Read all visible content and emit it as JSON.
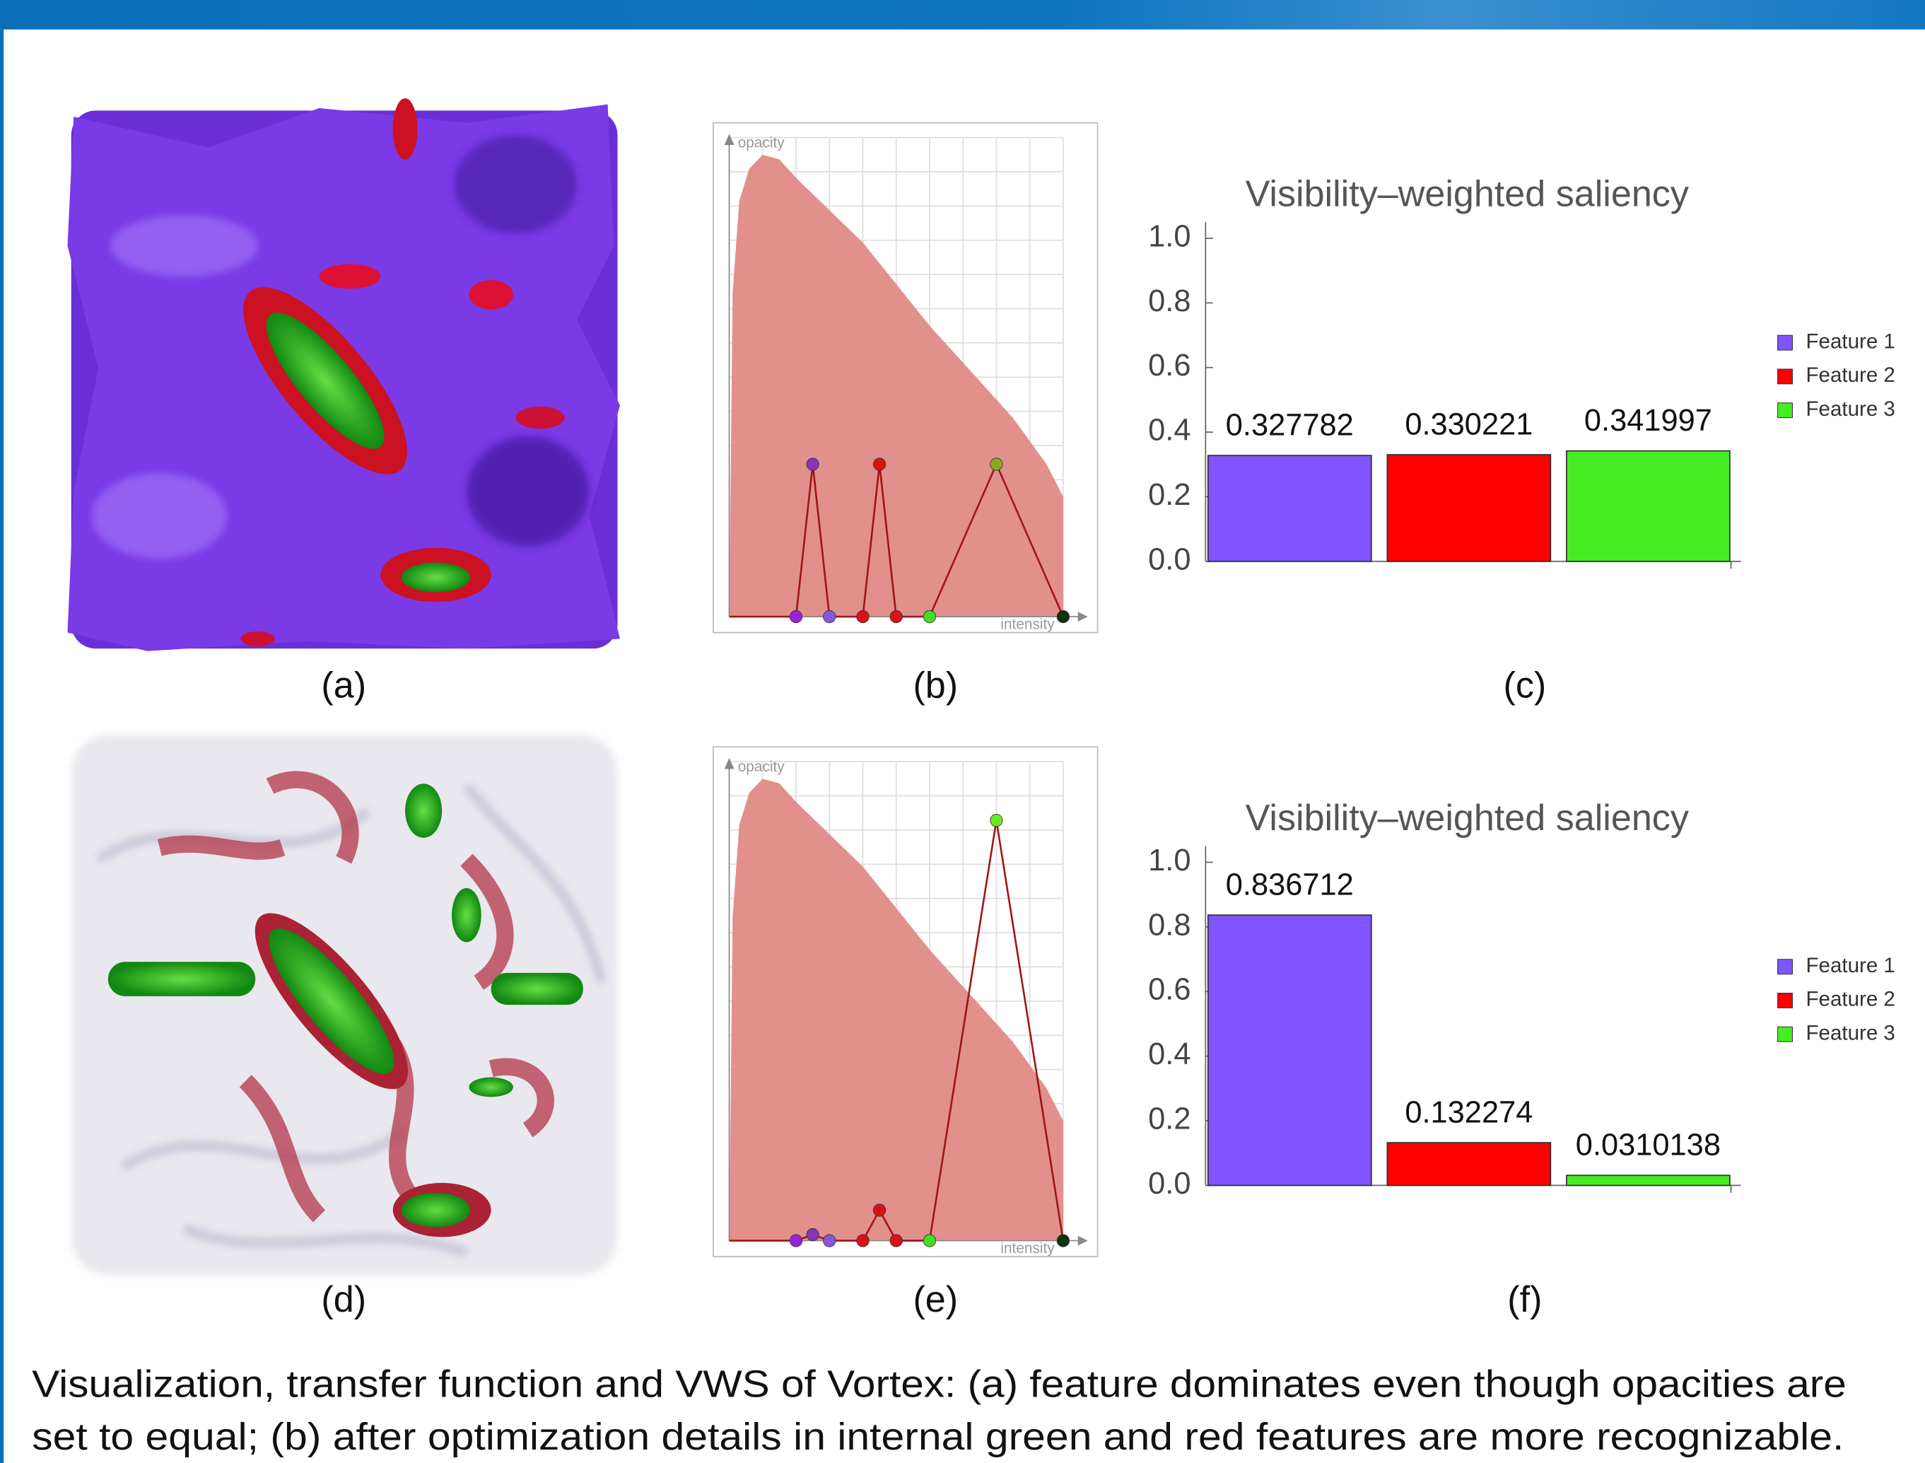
{
  "chart_data": [
    {
      "type": "transfer-function",
      "y_label": "opacity",
      "x_label": "intensity",
      "xlim": [
        0,
        1
      ],
      "ylim": [
        0,
        1
      ],
      "grid": true,
      "histogram": {
        "color": "#e08a86",
        "x": [
          0,
          0.01,
          0.03,
          0.06,
          0.1,
          0.15,
          0.2,
          0.3,
          0.4,
          0.5,
          0.6,
          0.7,
          0.8,
          0.85,
          0.9,
          0.95,
          1.0
        ],
        "values": [
          0,
          0.7,
          0.9,
          0.97,
          1.0,
          0.99,
          0.95,
          0.88,
          0.81,
          0.72,
          0.63,
          0.55,
          0.47,
          0.43,
          0.38,
          0.33,
          0.26
        ]
      },
      "control_points": {
        "color": "#a01515",
        "x": [
          0.2,
          0.25,
          0.3,
          0.4,
          0.45,
          0.5,
          0.6,
          0.8,
          1.0
        ],
        "values": [
          0,
          0.33,
          0,
          0,
          0.33,
          0,
          0,
          0.33,
          0
        ],
        "colors": [
          "#9922dd",
          "#8833bb",
          "#8855dd",
          "#dd1111",
          "#dd1111",
          "#dd1111",
          "#44dd22",
          "#88aa22",
          "#113311"
        ]
      }
    },
    {
      "type": "bar",
      "title": "Visibility–weighted saliency",
      "ylim": [
        0,
        1.05
      ],
      "yticks": [
        {
          "value": 0,
          "label": "0.0"
        },
        {
          "value": 0.2,
          "label": "0.2"
        },
        {
          "value": 0.4,
          "label": "0.4"
        },
        {
          "value": 0.6,
          "label": "0.6"
        },
        {
          "value": 0.8,
          "label": "0.8"
        },
        {
          "value": 1,
          "label": "1.0"
        }
      ],
      "series": [
        {
          "name": "Feature 1",
          "color": "#7f55ff",
          "values": [
            0.327782
          ]
        },
        {
          "name": "Feature 2",
          "color": "#ff0000",
          "values": [
            0.330221
          ]
        },
        {
          "name": "Feature 3",
          "color": "#44ee22",
          "values": [
            0.341997
          ]
        }
      ]
    },
    {
      "type": "transfer-function",
      "y_label": "opacity",
      "x_label": "intensity",
      "xlim": [
        0,
        1
      ],
      "ylim": [
        0,
        1
      ],
      "grid": true,
      "histogram": {
        "color": "#e08a86",
        "x": [
          0,
          0.01,
          0.03,
          0.06,
          0.1,
          0.15,
          0.2,
          0.3,
          0.4,
          0.5,
          0.6,
          0.7,
          0.8,
          0.85,
          0.9,
          0.95,
          1.0
        ],
        "values": [
          0,
          0.7,
          0.9,
          0.97,
          1.0,
          0.99,
          0.95,
          0.88,
          0.81,
          0.72,
          0.63,
          0.55,
          0.47,
          0.43,
          0.38,
          0.33,
          0.26
        ]
      },
      "control_points": {
        "color": "#a01515",
        "x": [
          0.2,
          0.25,
          0.3,
          0.4,
          0.45,
          0.5,
          0.6,
          0.8,
          1.0
        ],
        "values": [
          0,
          0.013,
          0,
          0,
          0.066,
          0,
          0,
          0.91,
          0
        ],
        "colors": [
          "#9922dd",
          "#8833bb",
          "#8855dd",
          "#dd1111",
          "#dd1111",
          "#dd1111",
          "#44dd22",
          "#66ee22",
          "#113311"
        ]
      }
    },
    {
      "type": "bar",
      "title": "Visibility–weighted saliency",
      "ylim": [
        0,
        1.05
      ],
      "yticks": [
        {
          "value": 0,
          "label": "0.0"
        },
        {
          "value": 0.2,
          "label": "0.2"
        },
        {
          "value": 0.4,
          "label": "0.4"
        },
        {
          "value": 0.6,
          "label": "0.6"
        },
        {
          "value": 0.8,
          "label": "0.8"
        },
        {
          "value": 1,
          "label": "1.0"
        }
      ],
      "series": [
        {
          "name": "Feature 1",
          "color": "#7f55ff",
          "values": [
            0.836712
          ]
        },
        {
          "name": "Feature 2",
          "color": "#ff0000",
          "values": [
            0.132274
          ]
        },
        {
          "name": "Feature 3",
          "color": "#44ee22",
          "values": [
            0.0310138
          ]
        }
      ]
    }
  ],
  "panel_labels": [
    "(a)",
    "(b)",
    "(c)",
    "(d)",
    "(e)",
    "(f)"
  ],
  "caption": [
    "Visualization, transfer function and VWS of Vortex: (a) feature dominates even though opacities are",
    "set to equal; (b) after optimization details in internal green and red features are more recognizable."
  ]
}
